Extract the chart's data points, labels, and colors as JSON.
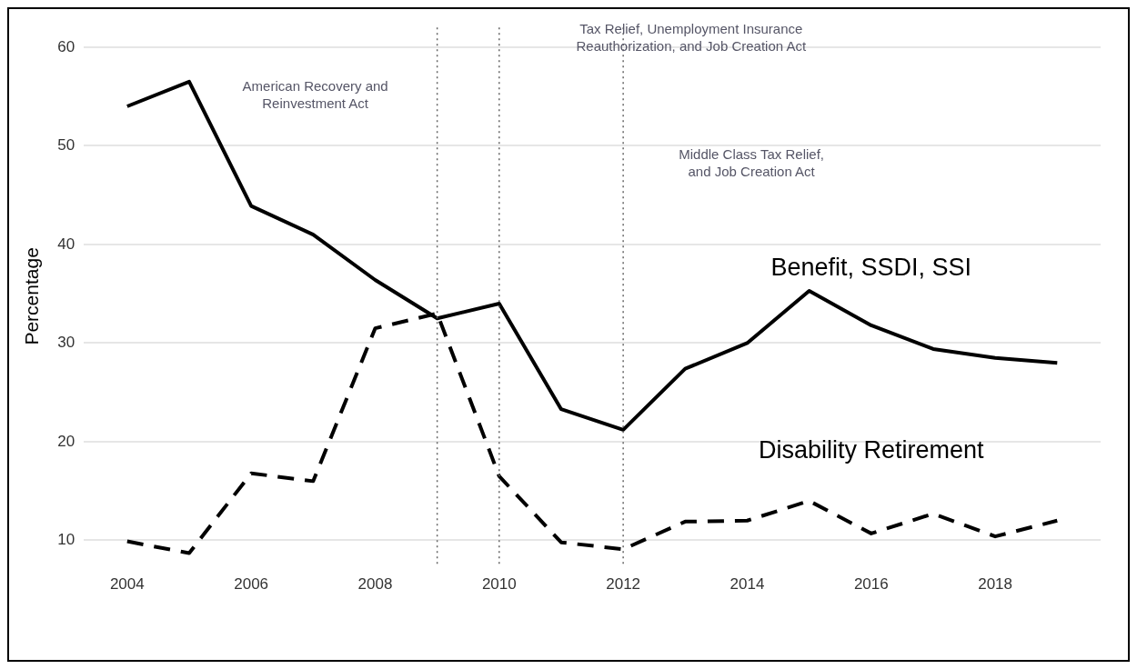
{
  "chart_data": {
    "type": "line",
    "ylabel": "Percentage",
    "x": [
      2004,
      2005,
      2006,
      2007,
      2008,
      2009,
      2010,
      2011,
      2012,
      2013,
      2014,
      2015,
      2016,
      2017,
      2018,
      2019
    ],
    "series": [
      {
        "name": "Benefit, SSDI, SSI",
        "color": "#000000",
        "line_style": "solid",
        "values": [
          54,
          56.5,
          43.9,
          41,
          36.4,
          32.5,
          34,
          23.3,
          21.2,
          27.4,
          30,
          35.3,
          31.8,
          29.4,
          28.5,
          28
        ]
      },
      {
        "name": "Disability Retirement",
        "color": "#000000",
        "line_style": "dashed",
        "values": [
          9.9,
          8.7,
          16.8,
          16,
          31.5,
          33,
          16.5,
          9.8,
          9.1,
          11.9,
          12,
          14,
          10.7,
          12.7,
          10.4,
          12
        ]
      }
    ],
    "xlim": [
      2003.3,
      2019.7
    ],
    "xticks": [
      2004,
      2006,
      2008,
      2010,
      2012,
      2014,
      2016,
      2018
    ],
    "ylim": [
      7.5,
      62
    ],
    "yticks": [
      10,
      20,
      30,
      40,
      50,
      60
    ],
    "grid": "y",
    "legend": false,
    "marker": "none",
    "ref_lines": [
      {
        "axis": "x",
        "value": 2009,
        "line_style": "dotted",
        "color": "#666666"
      },
      {
        "axis": "x",
        "value": 2010,
        "line_style": "dotted",
        "color": "#666666"
      },
      {
        "axis": "x",
        "value": 2012,
        "line_style": "dotted",
        "color": "#666666"
      }
    ],
    "annotations": [
      "American Recovery and\nReinvestment Act",
      "Tax Relief, Unemployment Insurance\nReauthorization, and Job Creation Act",
      "Middle Class Tax Relief,\nand Job Creation Act"
    ]
  }
}
